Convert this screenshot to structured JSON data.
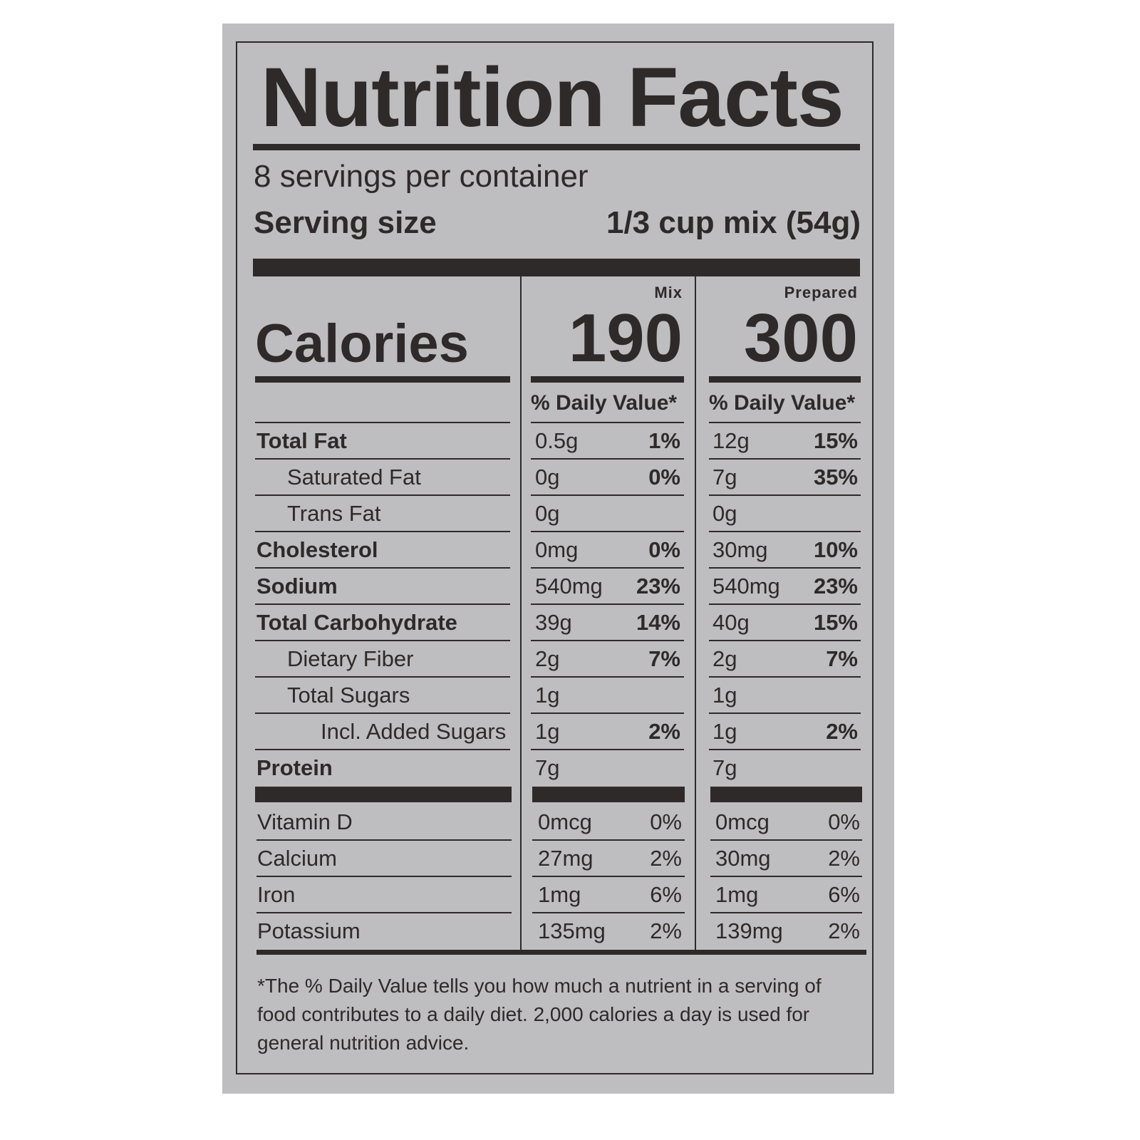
{
  "title": "Nutrition Facts",
  "servings_per_container": "8 servings per container",
  "serving_size_label": "Serving size",
  "serving_size_value": "1/3 cup mix (54g)",
  "columns": [
    {
      "label": "Mix",
      "calories": "190",
      "dv_header": "% Daily Value*"
    },
    {
      "label": "Prepared",
      "calories": "300",
      "dv_header": "% Daily Value*"
    }
  ],
  "calories_label": "Calories",
  "nutrients": [
    {
      "name": "Total Fat",
      "indent": 0,
      "bold": true,
      "mix_amount": "0.5g",
      "mix_dv": "1%",
      "prep_amount": "12g",
      "prep_dv": "15%"
    },
    {
      "name": "Saturated Fat",
      "indent": 1,
      "bold": false,
      "mix_amount": "0g",
      "mix_dv": "0%",
      "prep_amount": "7g",
      "prep_dv": "35%"
    },
    {
      "name": "Trans Fat",
      "indent": 1,
      "bold": false,
      "mix_amount": "0g",
      "mix_dv": "",
      "prep_amount": "0g",
      "prep_dv": ""
    },
    {
      "name": "Cholesterol",
      "indent": 0,
      "bold": true,
      "mix_amount": "0mg",
      "mix_dv": "0%",
      "prep_amount": "30mg",
      "prep_dv": "10%"
    },
    {
      "name": "Sodium",
      "indent": 0,
      "bold": true,
      "mix_amount": "540mg",
      "mix_dv": "23%",
      "prep_amount": "540mg",
      "prep_dv": "23%"
    },
    {
      "name": "Total Carbohydrate",
      "indent": 0,
      "bold": true,
      "mix_amount": "39g",
      "mix_dv": "14%",
      "prep_amount": "40g",
      "prep_dv": "15%"
    },
    {
      "name": "Dietary Fiber",
      "indent": 1,
      "bold": false,
      "mix_amount": "2g",
      "mix_dv": "7%",
      "prep_amount": "2g",
      "prep_dv": "7%"
    },
    {
      "name": "Total Sugars",
      "indent": 1,
      "bold": false,
      "mix_amount": "1g",
      "mix_dv": "",
      "prep_amount": "1g",
      "prep_dv": ""
    },
    {
      "name": "Incl. Added Sugars",
      "indent": 2,
      "bold": false,
      "mix_amount": "1g",
      "mix_dv": "2%",
      "prep_amount": "1g",
      "prep_dv": "2%"
    },
    {
      "name": "Protein",
      "indent": 0,
      "bold": true,
      "mix_amount": "7g",
      "mix_dv": "",
      "prep_amount": "7g",
      "prep_dv": ""
    }
  ],
  "vitamins": [
    {
      "name": "Vitamin D",
      "mix_amount": "0mcg",
      "mix_dv": "0%",
      "prep_amount": "0mcg",
      "prep_dv": "0%"
    },
    {
      "name": "Calcium",
      "mix_amount": "27mg",
      "mix_dv": "2%",
      "prep_amount": "30mg",
      "prep_dv": "2%"
    },
    {
      "name": "Iron",
      "mix_amount": "1mg",
      "mix_dv": "6%",
      "prep_amount": "1mg",
      "prep_dv": "6%"
    },
    {
      "name": "Potassium",
      "mix_amount": "135mg",
      "mix_dv": "2%",
      "prep_amount": "139mg",
      "prep_dv": "2%"
    }
  ],
  "footnote": "*The % Daily Value tells you how much a nutrient in a serving of food contributes to a daily diet. 2,000 calories a day is used for general nutrition advice.",
  "colors": {
    "background": "#bebdbf",
    "ink": "#2e2a29"
  }
}
